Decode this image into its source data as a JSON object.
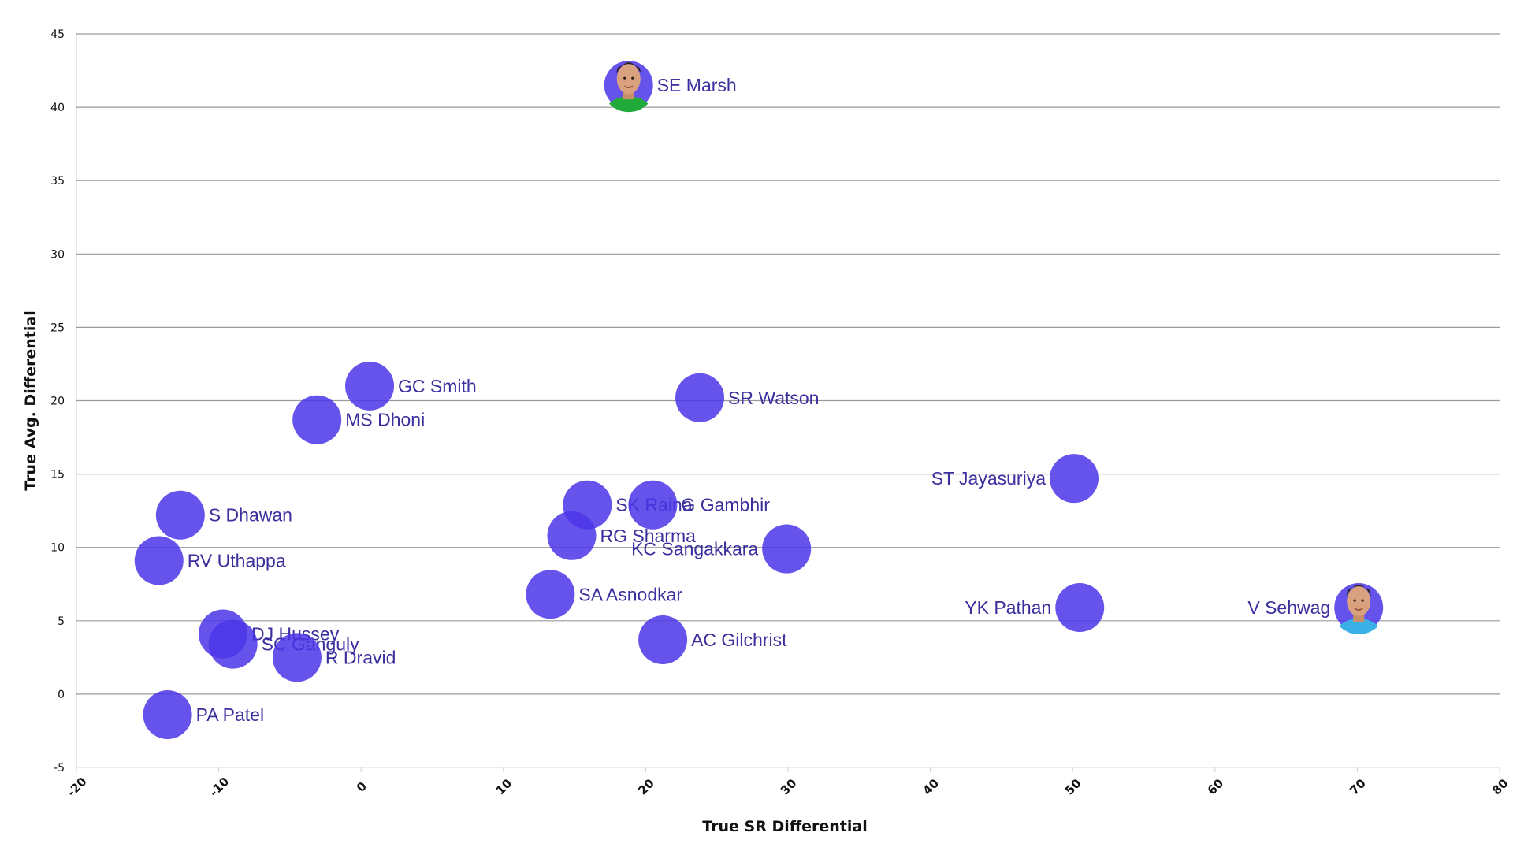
{
  "chart_data": {
    "type": "scatter",
    "xlabel": "True SR Differential",
    "ylabel": "True Avg. Differential",
    "xlim": [
      -20,
      80
    ],
    "ylim": [
      -5,
      45
    ],
    "x_ticks": [
      -20,
      -10,
      0,
      10,
      20,
      30,
      40,
      50,
      60,
      70,
      80
    ],
    "y_ticks": [
      -5,
      0,
      5,
      10,
      15,
      20,
      25,
      30,
      35,
      40,
      45
    ],
    "grid": "horizontal",
    "point_color": "#4b35e8",
    "label_color": "#3b2f9e",
    "points": [
      {
        "name": "SE Marsh",
        "x": 18.8,
        "y": 41.5,
        "label_side": "right",
        "photo": true,
        "photo_icon": "player-photo-icon",
        "shirt_color": "#1faa3a"
      },
      {
        "name": "GC Smith",
        "x": 0.6,
        "y": 21.0,
        "label_side": "right"
      },
      {
        "name": "MS Dhoni",
        "x": -3.1,
        "y": 18.7,
        "label_side": "right"
      },
      {
        "name": "SR Watson",
        "x": 23.8,
        "y": 20.2,
        "label_side": "right"
      },
      {
        "name": "ST Jayasuriya",
        "x": 50.1,
        "y": 14.7,
        "label_side": "left"
      },
      {
        "name": "S Dhawan",
        "x": -12.7,
        "y": 12.2,
        "label_side": "right"
      },
      {
        "name": "SK Raina",
        "x": 15.9,
        "y": 12.9,
        "label_side": "right"
      },
      {
        "name": "G Gambhir",
        "x": 20.5,
        "y": 12.9,
        "label_side": "right"
      },
      {
        "name": "RG Sharma",
        "x": 14.8,
        "y": 10.8,
        "label_side": "right"
      },
      {
        "name": "KC Sangakkara",
        "x": 29.9,
        "y": 9.9,
        "label_side": "left"
      },
      {
        "name": "RV Uthappa",
        "x": -14.2,
        "y": 9.1,
        "label_side": "right"
      },
      {
        "name": "SA Asnodkar",
        "x": 13.3,
        "y": 6.8,
        "label_side": "right"
      },
      {
        "name": "YK Pathan",
        "x": 50.5,
        "y": 5.9,
        "label_side": "left"
      },
      {
        "name": "V Sehwag",
        "x": 70.1,
        "y": 5.9,
        "label_side": "left",
        "photo": true,
        "photo_icon": "player-photo-icon",
        "shirt_color": "#3ab0e6"
      },
      {
        "name": "DJ Hussey",
        "x": -9.7,
        "y": 4.1,
        "label_side": "right"
      },
      {
        "name": "SC Ganguly",
        "x": -9.0,
        "y": 3.4,
        "label_side": "right"
      },
      {
        "name": "R Dravid",
        "x": -4.5,
        "y": 2.5,
        "label_side": "right"
      },
      {
        "name": "AC Gilchrist",
        "x": 21.2,
        "y": 3.7,
        "label_side": "right"
      },
      {
        "name": "PA Patel",
        "x": -13.6,
        "y": -1.4,
        "label_side": "right"
      }
    ]
  }
}
